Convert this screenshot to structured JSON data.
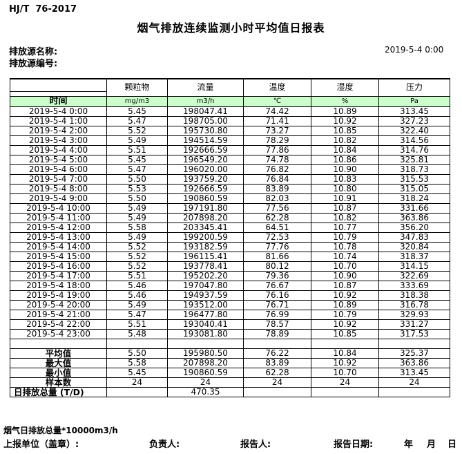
{
  "header": {
    "standard": "HJ/T  76-2017",
    "title": "烟气排放连续监测小时平均值日报表",
    "source_name_label": "排放源名称:",
    "source_code_label": "排放源编号:",
    "datetime": "2019-5-4 0:00"
  },
  "table": {
    "time_header": "时间",
    "columns": [
      {
        "label": "颗粒物",
        "unit": "mg/m3"
      },
      {
        "label": "流量",
        "unit": "m3/h"
      },
      {
        "label": "温度",
        "unit": "℃"
      },
      {
        "label": "湿度",
        "unit": "%"
      },
      {
        "label": "压力",
        "unit": "Pa"
      }
    ],
    "rows": [
      {
        "time": "2019-5-4 0:00",
        "values": [
          "5.45",
          "198047.41",
          "74.42",
          "10.89",
          "313.45"
        ]
      },
      {
        "time": "2019-5-4 1:00",
        "values": [
          "5.47",
          "198705.00",
          "71.41",
          "10.92",
          "327.23"
        ]
      },
      {
        "time": "2019-5-4 2:00",
        "values": [
          "5.52",
          "195730.80",
          "73.27",
          "10.85",
          "322.40"
        ]
      },
      {
        "time": "2019-5-4 3:00",
        "values": [
          "5.49",
          "194514.59",
          "78.29",
          "10.82",
          "314.56"
        ]
      },
      {
        "time": "2019-5-4 4:00",
        "values": [
          "5.51",
          "192666.59",
          "77.86",
          "10.84",
          "314.76"
        ]
      },
      {
        "time": "2019-5-4 5:00",
        "values": [
          "5.45",
          "196549.20",
          "74.78",
          "10.86",
          "325.81"
        ]
      },
      {
        "time": "2019-5-4 6:00",
        "values": [
          "5.47",
          "196020.00",
          "76.82",
          "10.90",
          "318.73"
        ]
      },
      {
        "time": "2019-5-4 7:00",
        "values": [
          "5.50",
          "193759.20",
          "76.84",
          "10.83",
          "315.53"
        ]
      },
      {
        "time": "2019-5-4 8:00",
        "values": [
          "5.53",
          "192666.59",
          "83.89",
          "10.80",
          "315.05"
        ]
      },
      {
        "time": "2019-5-4 9:00",
        "values": [
          "5.50",
          "190860.59",
          "82.03",
          "10.91",
          "318.24"
        ]
      },
      {
        "time": "2019-5-4 10:00",
        "values": [
          "5.49",
          "197191.80",
          "77.56",
          "10.87",
          "331.66"
        ]
      },
      {
        "time": "2019-5-4 11:00",
        "values": [
          "5.49",
          "207898.20",
          "62.28",
          "10.82",
          "363.86"
        ]
      },
      {
        "time": "2019-5-4 12:00",
        "values": [
          "5.58",
          "203345.41",
          "64.51",
          "10.77",
          "356.20"
        ]
      },
      {
        "time": "2019-5-4 13:00",
        "values": [
          "5.49",
          "199200.59",
          "72.53",
          "10.79",
          "347.83"
        ]
      },
      {
        "time": "2019-5-4 14:00",
        "values": [
          "5.52",
          "193182.59",
          "77.76",
          "10.78",
          "320.84"
        ]
      },
      {
        "time": "2019-5-4 15:00",
        "values": [
          "5.52",
          "196115.41",
          "81.66",
          "10.74",
          "318.37"
        ]
      },
      {
        "time": "2019-5-4 16:00",
        "values": [
          "5.52",
          "193778.41",
          "80.12",
          "10.70",
          "314.15"
        ]
      },
      {
        "time": "2019-5-4 17:00",
        "values": [
          "5.51",
          "195202.20",
          "79.36",
          "10.90",
          "322.69"
        ]
      },
      {
        "time": "2019-5-4 18:00",
        "values": [
          "5.46",
          "197047.80",
          "76.67",
          "10.87",
          "333.69"
        ]
      },
      {
        "time": "2019-5-4 19:00",
        "values": [
          "5.46",
          "194937.59",
          "76.16",
          "10.92",
          "318.38"
        ]
      },
      {
        "time": "2019-5-4 20:00",
        "values": [
          "5.49",
          "193512.00",
          "76.71",
          "10.89",
          "316.78"
        ]
      },
      {
        "time": "2019-5-4 21:00",
        "values": [
          "5.47",
          "196477.80",
          "76.99",
          "10.79",
          "329.93"
        ]
      },
      {
        "time": "2019-5-4 22:00",
        "values": [
          "5.51",
          "193040.41",
          "78.57",
          "10.92",
          "331.27"
        ]
      },
      {
        "time": "2019-5-4 23:00",
        "values": [
          "5.48",
          "193081.80",
          "78.89",
          "10.85",
          "317.53"
        ]
      }
    ],
    "summary": [
      {
        "label": "平均值",
        "values": [
          "5.50",
          "195980.50",
          "76.22",
          "10.84",
          "325.37"
        ]
      },
      {
        "label": "最大值",
        "values": [
          "5.58",
          "207898.20",
          "83.89",
          "10.92",
          "363.86"
        ]
      },
      {
        "label": "最小值",
        "values": [
          "5.45",
          "190860.59",
          "62.28",
          "10.70",
          "313.45"
        ]
      },
      {
        "label": "样本数",
        "values": [
          "24",
          "24",
          "24",
          "24",
          "24"
        ]
      },
      {
        "label": "日排放总量 (T/D)",
        "values": [
          "",
          "470.35",
          "",
          "",
          ""
        ],
        "total": true
      }
    ]
  },
  "footer": {
    "note": "烟气日排放总量*10000m3/h",
    "report_unit_label": "上报单位（盖章）:",
    "responsible_label": "负责人:",
    "reporter_label": "报告人:",
    "report_date_label": "报告日期:",
    "year_label": "年",
    "month_label": "月",
    "day_label": "日"
  },
  "colors": {
    "unit_row_bg": "#ccffcc",
    "border": "#000000"
  }
}
